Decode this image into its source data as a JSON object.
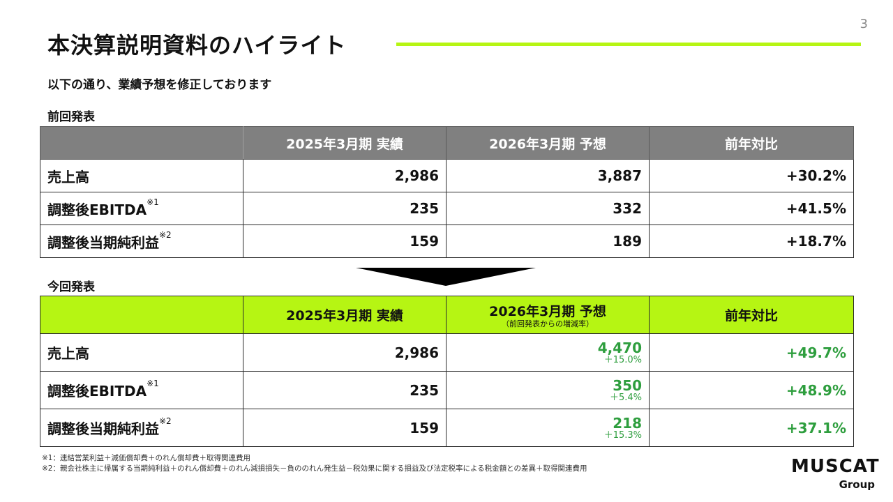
{
  "page_number": "3",
  "title": "本決算説明資料のハイライト",
  "subtitle": "以下の通り、業績予想を修正しております",
  "previous": {
    "section_label": "前回発表",
    "headers": [
      "",
      "2025年3月期 実績",
      "2026年3月期 予想",
      "前年対比"
    ],
    "rows": [
      {
        "label": "売上高",
        "note": "",
        "actual": "2,986",
        "forecast": "3,887",
        "yoy": "+30.2%"
      },
      {
        "label": "調整後EBITDA",
        "note": "※1",
        "actual": "235",
        "forecast": "332",
        "yoy": "+41.5%"
      },
      {
        "label": "調整後当期純利益",
        "note": "※2",
        "actual": "159",
        "forecast": "189",
        "yoy": "+18.7%"
      }
    ]
  },
  "current": {
    "section_label": "今回発表",
    "headers": [
      "",
      "2025年3月期 実績",
      "2026年3月期 予想",
      "前年対比"
    ],
    "forecast_header_sub": "（前回発表からの増減率）",
    "rows": [
      {
        "label": "売上高",
        "note": "",
        "actual": "2,986",
        "forecast": "4,470",
        "change": "＋15.0%",
        "yoy": "+49.7%"
      },
      {
        "label": "調整後EBITDA",
        "note": "※1",
        "actual": "235",
        "forecast": "350",
        "change": "＋5.4%",
        "yoy": "+48.9%"
      },
      {
        "label": "調整後当期純利益",
        "note": "※2",
        "actual": "159",
        "forecast": "218",
        "change": "＋15.3%",
        "yoy": "+37.1%"
      }
    ]
  },
  "footnotes": [
    "※1：連結営業利益＋減価償却費＋のれん償却費＋取得関連費用",
    "※2：親会社株主に帰属する当期純利益＋のれん償却費＋のれん減損損失－負ののれん発生益－税効果に関する損益及び法定税率による税金額との差異＋取得関連費用"
  ],
  "logo": {
    "main": "MUSCAT",
    "sub": "Group"
  },
  "colors": {
    "accent_green": "#b6f513",
    "header_gray": "#808080",
    "value_green": "#2e9e3e"
  }
}
